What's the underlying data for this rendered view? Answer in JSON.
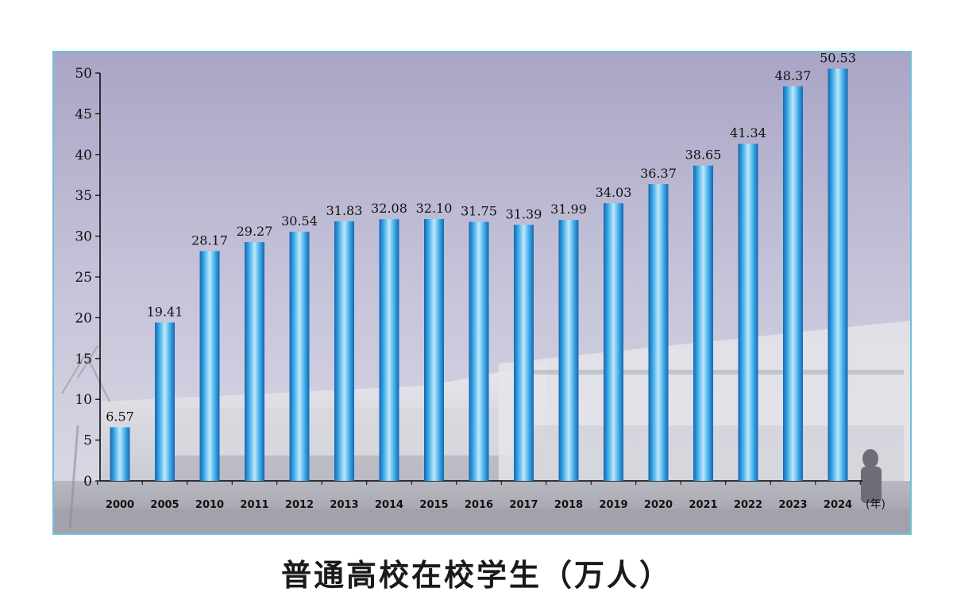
{
  "chart_data": {
    "type": "bar",
    "title": "普通高校在校学生（万人）",
    "xlabel": "(年)",
    "ylabel": "",
    "categories": [
      "2000",
      "2005",
      "2010",
      "2011",
      "2012",
      "2013",
      "2014",
      "2015",
      "2016",
      "2017",
      "2018",
      "2019",
      "2020",
      "2021",
      "2022",
      "2023",
      "2024"
    ],
    "values": [
      6.57,
      19.41,
      28.17,
      29.27,
      30.54,
      31.83,
      32.08,
      32.1,
      31.75,
      31.39,
      31.99,
      34.03,
      36.37,
      38.65,
      41.34,
      48.37,
      50.53
    ],
    "value_labels": [
      "6.57",
      "19.41",
      "28.17",
      "29.27",
      "30.54",
      "31.83",
      "32.08",
      "32.10",
      "31.75",
      "31.39",
      "31.99",
      "34.03",
      "36.37",
      "38.65",
      "41.34",
      "48.37",
      "50.53"
    ],
    "ylim": [
      0,
      50
    ],
    "yticks": [
      "0",
      "5",
      "10",
      "15",
      "20",
      "25",
      "30",
      "35",
      "40",
      "45",
      "50"
    ],
    "grid": false,
    "colors": {
      "bar_light": "#bfe8fb",
      "bar_mid": "#3aa9e6",
      "bar_dark": "#1466b4",
      "frame": "#6fc0dc",
      "sky_top": "#a9a5c6",
      "sky_bottom": "#d6d6e2"
    },
    "background": "campus-building-photo"
  }
}
